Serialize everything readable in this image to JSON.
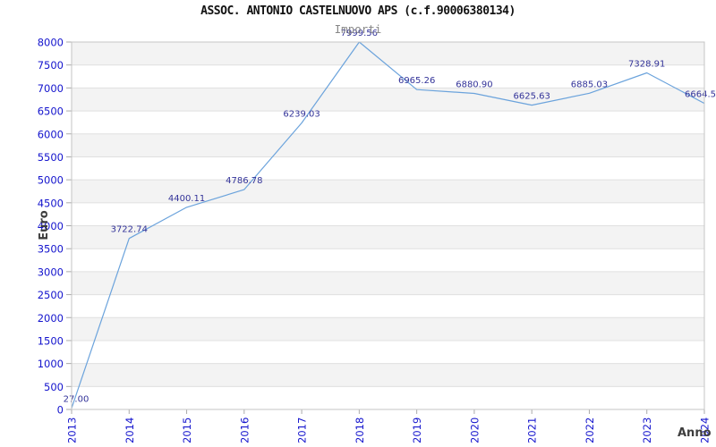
{
  "header": {
    "title": "ASSOC. ANTONIO CASTELNUOVO APS (c.f.90006380134)",
    "subtitle": "Importi"
  },
  "chart_data": {
    "type": "line",
    "title": "ASSOC. ANTONIO CASTELNUOVO APS (c.f.90006380134)",
    "subtitle": "Importi",
    "xlabel": "Anno",
    "ylabel": "Euro",
    "x": [
      2013,
      2014,
      2015,
      2016,
      2017,
      2018,
      2019,
      2020,
      2021,
      2022,
      2023,
      2024
    ],
    "values": [
      27.0,
      3722.74,
      4400.11,
      4786.78,
      6239.03,
      7999.56,
      6965.26,
      6880.9,
      6625.63,
      6885.03,
      7328.91,
      6664.5
    ],
    "point_labels": [
      "27.00",
      "3722.74",
      "4400.11",
      "4786.78",
      "6239.03",
      "7999.56",
      "6965.26",
      "6880.90",
      "6625.63",
      "6885.03",
      "7328.91",
      "6664.5"
    ],
    "ylim": [
      0,
      8000
    ],
    "ytick_step": 500,
    "grid": "horizontal-only",
    "banded_background": true,
    "legend": "none",
    "colors": {
      "line": "#6ba3dc",
      "point_label": "#333399",
      "axis_tick_label": "#1414cd",
      "band": "#f3f3f3",
      "gridline": "#e0e0e0",
      "plot_border": "#c4c4c4",
      "tick": "#aaaaaa",
      "axis_title": "#3d3d3d",
      "title": "#111111",
      "subtitle": "#878787"
    }
  }
}
